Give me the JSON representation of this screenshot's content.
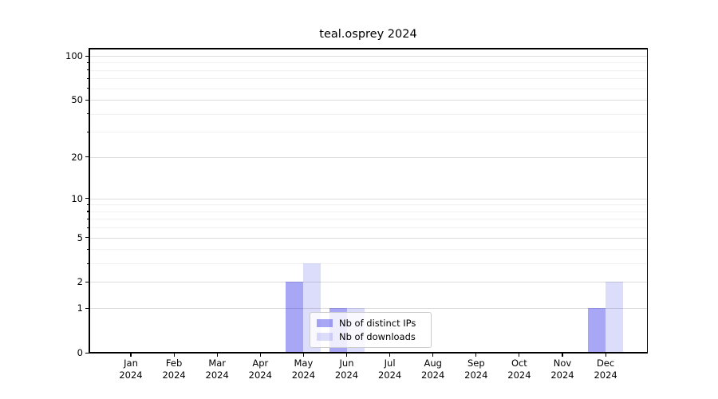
{
  "chart_data": {
    "type": "bar",
    "title": "teal.osprey 2024",
    "categories": [
      "Jan",
      "Feb",
      "Mar",
      "Apr",
      "May",
      "Jun",
      "Jul",
      "Aug",
      "Sep",
      "Oct",
      "Nov",
      "Dec"
    ],
    "categories_year": "2024",
    "series": [
      {
        "name": "Nb of distinct IPs",
        "fill": "rgba(10,10,230,0.36)",
        "values": [
          0,
          0,
          0,
          0,
          2,
          1,
          0,
          0,
          0,
          0,
          0,
          1
        ]
      },
      {
        "name": "Nb of downloads",
        "fill": "rgba(10,10,230,0.14)",
        "values": [
          0,
          0,
          0,
          0,
          3,
          1,
          0,
          0,
          0,
          0,
          0,
          2
        ]
      }
    ],
    "xlabel": "",
    "ylabel": "",
    "yscale": "log1p",
    "ylim": [
      0,
      100
    ],
    "y_major_ticks": [
      0,
      1,
      2,
      5,
      10,
      20,
      50,
      100
    ],
    "y_minor_ticks": [
      3,
      4,
      6,
      7,
      8,
      9,
      30,
      40,
      60,
      70,
      80,
      90
    ],
    "grid": "horizontal",
    "legend_position": "inside-bottom-center"
  },
  "colors": {
    "grid_major": "#dcdcdc",
    "grid_minor": "#f1f1f1",
    "axis": "#000000",
    "legend_border": "#cccccc",
    "background": "#ffffff"
  }
}
